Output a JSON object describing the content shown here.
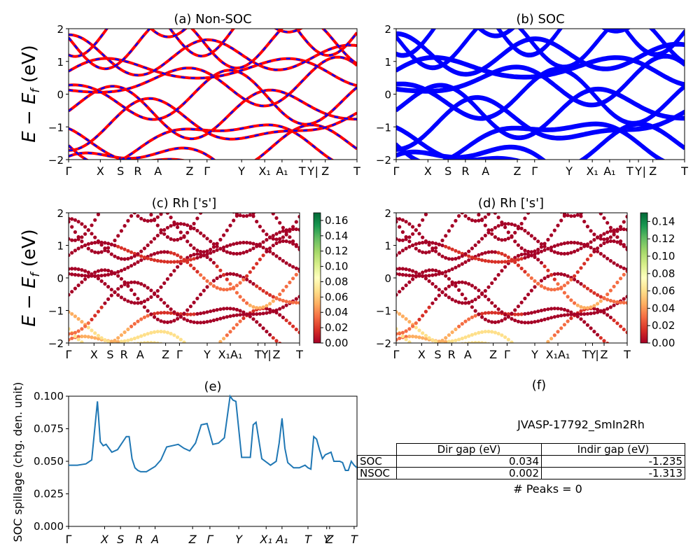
{
  "panel_a": {
    "title": "(a) Non-SOC"
  },
  "panel_b": {
    "title": "(b) SOC"
  },
  "panel_c": {
    "title": "(c)  Rh ['s']"
  },
  "panel_d": {
    "title": "(d) Rh ['s']"
  },
  "panel_e": {
    "title": "(e)",
    "ylabel": "SOC spillage (chg. den. unit)"
  },
  "panel_f": {
    "title": "(f)",
    "material": "JVASP-17792_SmIn2Rh",
    "peaks": "# Peaks = 0"
  },
  "band_ylabel": "E − E_f (eV)",
  "band_ylim": [
    -2,
    2
  ],
  "band_yticks": [
    "2",
    "1",
    "0",
    "−1",
    "−2"
  ],
  "kpath_labels_ab": [
    "Γ",
    "X",
    "S",
    "R",
    "A",
    "Z",
    "Γ",
    "Y",
    "X₁",
    "A₁",
    "T",
    "Y",
    "|",
    "Z",
    "T"
  ],
  "kpath_labels_cd": [
    "Γ",
    "X",
    "S",
    "R",
    "A",
    "Z",
    "Γ",
    "Y",
    "X₁A₁",
    "T",
    "Y",
    "|",
    "Z",
    "T"
  ],
  "kpath_labels_e": [
    "Γ",
    "X",
    "S",
    "R",
    "A",
    "Z",
    "Γ",
    "Y",
    "X₁",
    "A₁",
    "T",
    "Y",
    "Z",
    "T"
  ],
  "colorbar_c": {
    "ticks": [
      "0.16",
      "0.14",
      "0.12",
      "0.10",
      "0.08",
      "0.06",
      "0.04",
      "0.02",
      "0.00"
    ],
    "max": 0.17
  },
  "colorbar_d": {
    "ticks": [
      "0.14",
      "0.12",
      "0.10",
      "0.08",
      "0.06",
      "0.04",
      "0.02",
      "0.00"
    ],
    "max": 0.15
  },
  "table": {
    "header": [
      "Dir gap (eV)",
      "Indir gap (eV)"
    ],
    "rows": [
      {
        "label": "SOC",
        "dir": "0.034",
        "indir": "-1.235"
      },
      {
        "label": "NSOC",
        "dir": "0.002",
        "indir": "-1.313"
      }
    ]
  },
  "colors": {
    "nonsoc_line": "#ff0000",
    "nonsoc_dash": "#0000ff",
    "soc_line": "#0000ff",
    "spillage_line": "#1f77b4"
  },
  "chart_data": [
    {
      "type": "line",
      "title": "(a) Non-SOC",
      "ylabel": "E − E_f (eV)",
      "ylim": [
        -2,
        2
      ]
    },
    {
      "type": "line",
      "title": "(b) SOC",
      "ylim": [
        -2,
        2
      ]
    },
    {
      "type": "scatter",
      "title": "(c)  Rh ['s']",
      "ylabel": "E − E_f (eV)",
      "ylim": [
        -2,
        2
      ],
      "colorbar_range": [
        0,
        0.17
      ]
    },
    {
      "type": "scatter",
      "title": "(d) Rh ['s']",
      "ylim": [
        -2,
        2
      ],
      "colorbar_range": [
        0,
        0.15
      ]
    },
    {
      "type": "line",
      "title": "(e)",
      "ylabel": "SOC spillage (chg. den. unit)",
      "ylim": [
        0,
        0.1
      ],
      "yticks": [
        "0.000",
        "0.025",
        "0.050",
        "0.075",
        "0.100"
      ],
      "x": [
        0,
        3,
        6,
        8,
        10,
        11,
        12,
        13,
        15,
        17,
        20,
        21,
        22,
        23,
        24,
        25,
        27,
        30,
        32,
        34,
        36,
        38,
        40,
        42,
        44,
        46,
        48,
        50,
        52,
        54,
        56,
        57,
        58,
        60,
        62,
        63,
        64,
        65,
        67,
        70,
        72,
        73,
        74,
        75,
        76,
        78,
        79,
        80,
        82,
        83,
        84,
        85,
        86,
        87,
        88,
        89,
        91,
        92,
        94,
        95,
        96,
        97,
        98,
        99,
        100
      ],
      "y": [
        0.047,
        0.047,
        0.048,
        0.051,
        0.096,
        0.065,
        0.062,
        0.063,
        0.057,
        0.059,
        0.069,
        0.069,
        0.052,
        0.045,
        0.043,
        0.042,
        0.042,
        0.046,
        0.051,
        0.061,
        0.062,
        0.063,
        0.06,
        0.058,
        0.064,
        0.078,
        0.079,
        0.063,
        0.064,
        0.068,
        0.1,
        0.097,
        0.096,
        0.053,
        0.053,
        0.053,
        0.078,
        0.08,
        0.052,
        0.047,
        0.05,
        0.064,
        0.083,
        0.06,
        0.049,
        0.045,
        0.045,
        0.045,
        0.047,
        0.045,
        0.044,
        0.069,
        0.067,
        0.059,
        0.052,
        0.055,
        0.057,
        0.05,
        0.05,
        0.049,
        0.043,
        0.043,
        0.05,
        0.047,
        0.045
      ],
      "series": [
        {
          "name": "",
          "color": "#1f77b4"
        }
      ]
    }
  ]
}
